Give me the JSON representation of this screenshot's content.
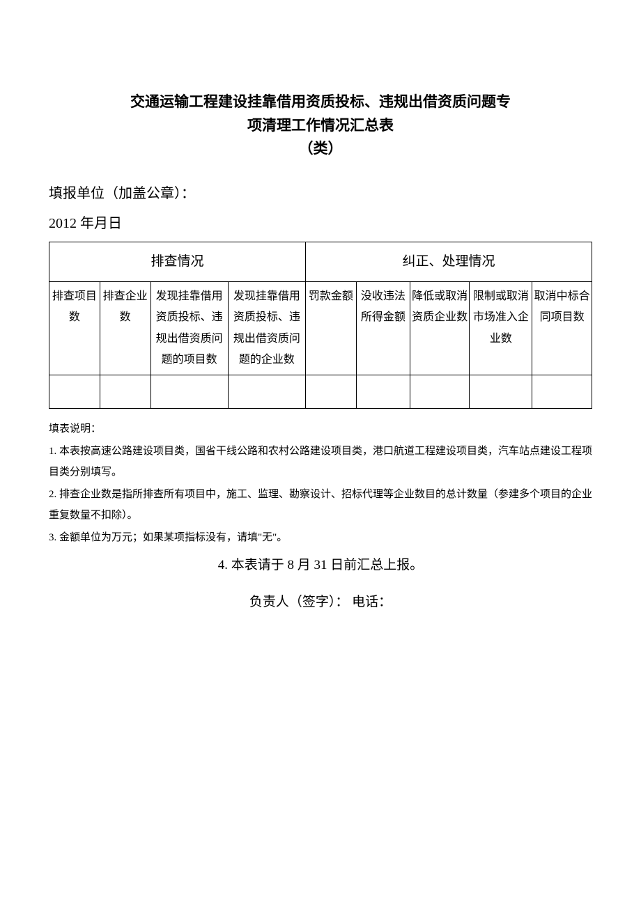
{
  "title": {
    "line1": "交通运输工程建设挂靠借用资质投标、违规出借资质问题专",
    "line2": "项清理工作情况汇总表",
    "line3": "（类）"
  },
  "meta": {
    "filingUnitLabel": "填报单位（加盖公章）：",
    "dateLine": "2012 年月日"
  },
  "table": {
    "groupHeaders": [
      "排查情况",
      "纠正、处理情况"
    ],
    "columns": [
      "排查项目数",
      "排查企业数",
      "发现挂靠借用资质投标、违规出借资质问题的项目数",
      "发现挂靠借用资质投标、违规出借资质问题的企业数",
      "罚款金额",
      "没收违法所得金额",
      "降低或取消资质企业数",
      "限制或取消市场准入企业数",
      "取消中标合同项目数"
    ],
    "rows": [
      [
        "",
        "",
        "",
        "",
        "",
        "",
        "",
        "",
        ""
      ]
    ],
    "colWidths": [
      "8.5%",
      "8.5%",
      "13%",
      "13%",
      "8.5%",
      "9%",
      "10%",
      "10.5%",
      "10%"
    ]
  },
  "notes": {
    "label": "填表说明：",
    "items": [
      "1. 本表按高速公路建设项目类，国省干线公路和农村公路建设项目类，港口航道工程建设项目类，汽车站点建设工程项目类分别填写。",
      "2. 排查企业数是指所排查所有项目中，施工、监理、勘察设计、招标代理等企业数目的总计数量（参建多个项目的企业重复数量不扣除）。",
      "3. 金额单位为万元；如果某项指标没有，请填\"无\"。"
    ],
    "item4": "4. 本表请于 8 月 31 日前汇总上报。"
  },
  "signature": "负责人（签字）：  电话："
}
